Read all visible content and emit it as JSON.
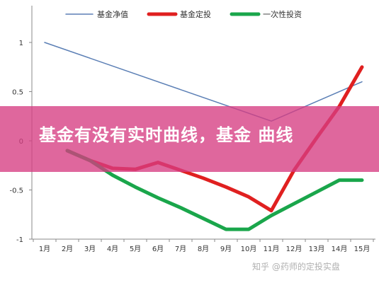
{
  "banner": {
    "title": "基金有没有实时曲线，基金 曲线"
  },
  "watermark": {
    "text": "知乎 @药师的定投实盘"
  },
  "chart_data": {
    "type": "line",
    "title": "",
    "xlabel": "",
    "ylabel": "",
    "categories": [
      "1月",
      "2月",
      "3月",
      "4月",
      "5月",
      "6月",
      "7月",
      "8月",
      "9月",
      "10月",
      "11月",
      "12月",
      "13月",
      "14月",
      "15月"
    ],
    "ylim": [
      -1,
      1.5
    ],
    "yticks": [
      1,
      0.5,
      0,
      -0.5,
      -1
    ],
    "grid": false,
    "legend_position": "top",
    "series": [
      {
        "name": "基金净值",
        "color": "#5b7fb5",
        "stroke": 1.5,
        "values": [
          1.0,
          null,
          null,
          null,
          null,
          null,
          null,
          null,
          null,
          null,
          0.2,
          null,
          null,
          null,
          0.6
        ]
      },
      {
        "name": "基金定投",
        "color": "#e02020",
        "stroke": 5,
        "values": [
          null,
          -0.1,
          -0.2,
          -0.28,
          -0.29,
          -0.22,
          -0.3,
          -0.38,
          -0.47,
          -0.57,
          -0.71,
          -0.3,
          0.03,
          0.35,
          0.75
        ]
      },
      {
        "name": "一次性投资",
        "color": "#1aa64b",
        "stroke": 5,
        "values": [
          null,
          -0.1,
          -0.2,
          -0.35,
          -0.47,
          -0.58,
          -0.68,
          -0.79,
          -0.9,
          -0.9,
          -0.76,
          -0.64,
          -0.52,
          -0.4,
          -0.4
        ]
      }
    ]
  }
}
